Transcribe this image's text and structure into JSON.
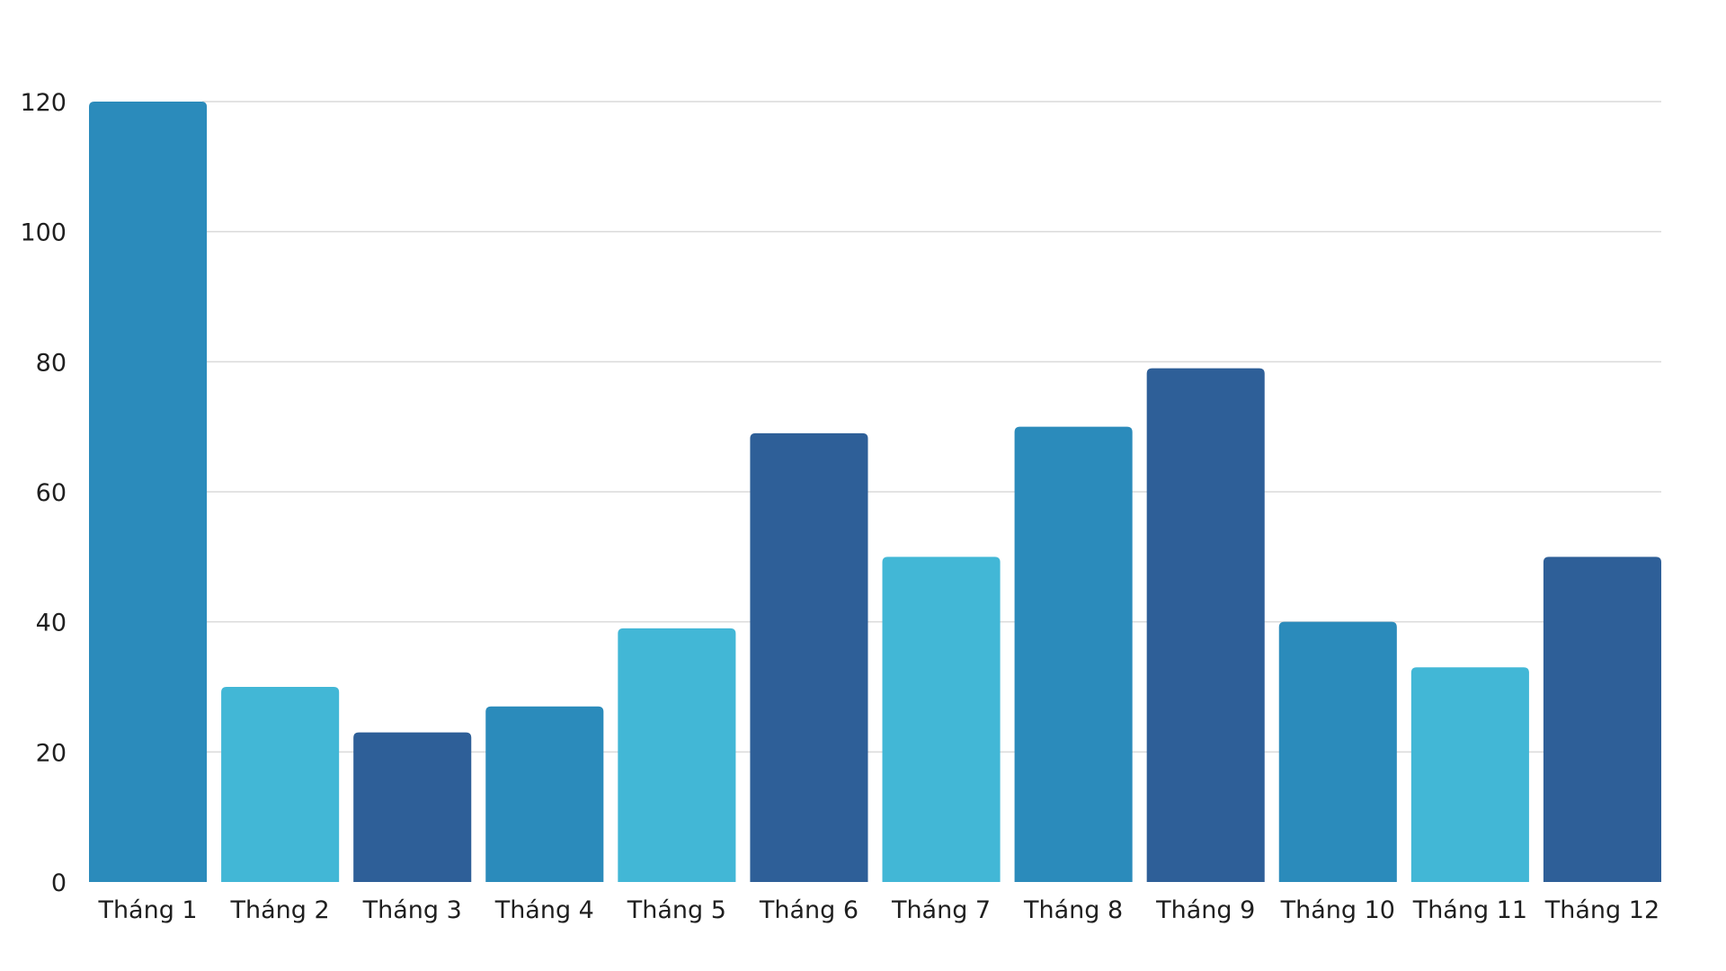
{
  "chart_data": {
    "type": "bar",
    "title": "",
    "xlabel": "",
    "ylabel": "",
    "categories": [
      "Tháng 1",
      "Tháng 2",
      "Tháng 3",
      "Tháng 4",
      "Tháng 5",
      "Tháng 6",
      "Tháng 7",
      "Tháng 8",
      "Tháng 9",
      "Tháng 10",
      "Tháng 11",
      "Tháng 12"
    ],
    "values": [
      120,
      30,
      23,
      27,
      39,
      69,
      50,
      70,
      79,
      40,
      33,
      50
    ],
    "bar_colors": [
      "#2b8bbb",
      "#42b7d6",
      "#2e5f98",
      "#2b8bbb",
      "#42b7d6",
      "#2e5f98",
      "#42b7d6",
      "#2b8bbb",
      "#2e5f98",
      "#2b8bbb",
      "#42b7d6",
      "#2e5f98"
    ],
    "ylim": [
      0,
      120
    ],
    "yticks": [
      0,
      20,
      40,
      60,
      80,
      100,
      120
    ],
    "grid": true,
    "legend": "none"
  }
}
